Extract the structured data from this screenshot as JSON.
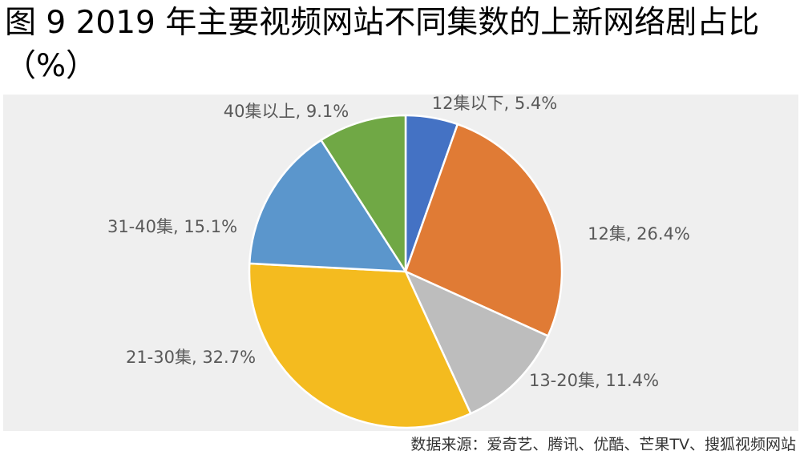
{
  "chart_data": {
    "type": "pie",
    "title": "图 9 2019 年主要视频网站不同集数的上新网络剧占比（%）",
    "source": "数据来源：爱奇艺、腾讯、优酷、芒果TV、搜狐视频网站",
    "values": [
      5.4,
      26.4,
      11.4,
      32.7,
      15.1,
      9.1
    ],
    "value_labels": [
      "12集以下, 5.4%",
      "12集, 26.4%",
      "13-20集, 11.4%",
      "21-30集, 32.7%",
      "31-40集, 15.1%",
      "40集以上, 9.1%"
    ],
    "colors": [
      "#4472c4",
      "#e07b35",
      "#bdbdbd",
      "#f4bb1f",
      "#5b96cc",
      "#70a845"
    ]
  }
}
